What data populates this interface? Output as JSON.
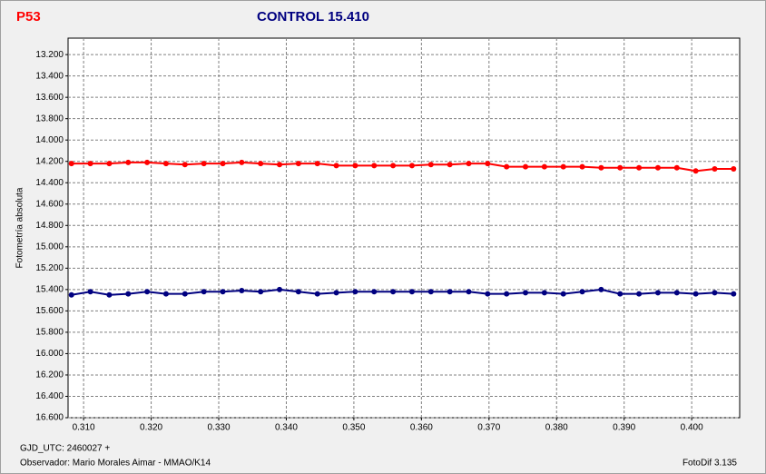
{
  "chart_data": {
    "type": "line",
    "label": "P53",
    "title": "CONTROL 15.410",
    "ylabel": "Fotometría absoluta",
    "xlabel": "GJD_UTC: 2460027 +",
    "observer": "Observador: Mario Morales Aimar - MMAO/K14",
    "software": "FotoDif 3.135",
    "xlim": [
      0.3077,
      0.4071
    ],
    "ylim": [
      13.046,
      16.6
    ],
    "y_inverted": true,
    "grid": true,
    "xticks": [
      {
        "value": 0.31,
        "label": "0.310"
      },
      {
        "value": 0.32,
        "label": "0.320"
      },
      {
        "value": 0.33,
        "label": "0.330"
      },
      {
        "value": 0.34,
        "label": "0.340"
      },
      {
        "value": 0.35,
        "label": "0.350"
      },
      {
        "value": 0.36,
        "label": "0.360"
      },
      {
        "value": 0.37,
        "label": "0.370"
      },
      {
        "value": 0.38,
        "label": "0.380"
      },
      {
        "value": 0.39,
        "label": "0.390"
      },
      {
        "value": 0.4,
        "label": "0.400"
      }
    ],
    "yticks": [
      {
        "value": 13.2,
        "label": "13.200"
      },
      {
        "value": 13.4,
        "label": "13.400"
      },
      {
        "value": 13.6,
        "label": "13.600"
      },
      {
        "value": 13.8,
        "label": "13.800"
      },
      {
        "value": 14.0,
        "label": "14.000"
      },
      {
        "value": 14.2,
        "label": "14.200"
      },
      {
        "value": 14.4,
        "label": "14.400"
      },
      {
        "value": 14.6,
        "label": "14.600"
      },
      {
        "value": 14.8,
        "label": "14.800"
      },
      {
        "value": 15.0,
        "label": "15.000"
      },
      {
        "value": 15.2,
        "label": "15.200"
      },
      {
        "value": 15.4,
        "label": "15.400"
      },
      {
        "value": 15.6,
        "label": "15.600"
      },
      {
        "value": 15.8,
        "label": "15.800"
      },
      {
        "value": 16.0,
        "label": "16.000"
      },
      {
        "value": 16.2,
        "label": "16.200"
      },
      {
        "value": 16.4,
        "label": "16.400"
      },
      {
        "value": 16.6,
        "label": "16.600"
      }
    ],
    "x": [
      0.3082,
      0.311,
      0.3138,
      0.3166,
      0.3194,
      0.3222,
      0.325,
      0.3278,
      0.3306,
      0.3334,
      0.3362,
      0.339,
      0.3418,
      0.3446,
      0.3474,
      0.3502,
      0.353,
      0.3558,
      0.3586,
      0.3614,
      0.3642,
      0.367,
      0.3698,
      0.3726,
      0.3754,
      0.3782,
      0.381,
      0.3838,
      0.3866,
      0.3894,
      0.3922,
      0.395,
      0.3978,
      0.4006,
      0.4034,
      0.4062
    ],
    "series": [
      {
        "color": "#ff0000",
        "values": [
          14.22,
          14.22,
          14.22,
          14.21,
          14.21,
          14.22,
          14.23,
          14.22,
          14.22,
          14.21,
          14.22,
          14.23,
          14.22,
          14.22,
          14.24,
          14.24,
          14.24,
          14.24,
          14.24,
          14.23,
          14.23,
          14.22,
          14.22,
          14.25,
          14.25,
          14.25,
          14.25,
          14.25,
          14.26,
          14.26,
          14.26,
          14.26,
          14.26,
          14.29,
          14.27,
          14.27
        ]
      },
      {
        "color": "#000080",
        "values": [
          15.45,
          15.42,
          15.45,
          15.44,
          15.42,
          15.44,
          15.44,
          15.42,
          15.42,
          15.41,
          15.42,
          15.4,
          15.42,
          15.44,
          15.43,
          15.42,
          15.42,
          15.42,
          15.42,
          15.42,
          15.42,
          15.42,
          15.44,
          15.44,
          15.43,
          15.43,
          15.44,
          15.42,
          15.4,
          15.44,
          15.44,
          15.43,
          15.43,
          15.44,
          15.43,
          15.44
        ]
      }
    ]
  }
}
